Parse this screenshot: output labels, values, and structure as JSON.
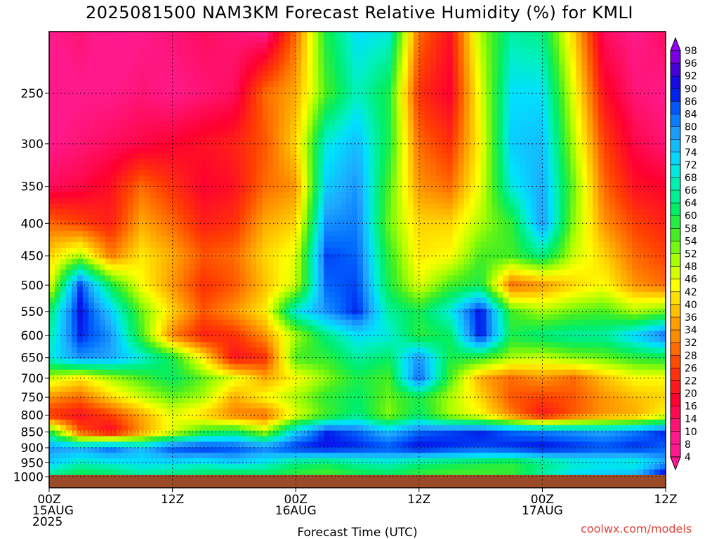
{
  "title": "2025081500 NAM3KM Forecast Relative Humidity (%) for KMLI",
  "credit": "coolwx.com/models",
  "chart_data": {
    "type": "heatmap",
    "title": "2025081500 NAM3KM Forecast Relative Humidity (%) for KMLI",
    "xlabel": "Forecast Time (UTC)",
    "ylabel": "",
    "x_range_hours": [
      0,
      60
    ],
    "y_range_hPa": [
      200,
      1040
    ],
    "y_scale": "log",
    "x_ticks": [
      {
        "hour": 0,
        "lines": [
          "00Z",
          "15AUG",
          "2025"
        ]
      },
      {
        "hour": 12,
        "lines": [
          "12Z"
        ]
      },
      {
        "hour": 24,
        "lines": [
          "00Z",
          "16AUG"
        ]
      },
      {
        "hour": 36,
        "lines": [
          "12Z"
        ]
      },
      {
        "hour": 48,
        "lines": [
          "00Z",
          "17AUG"
        ]
      },
      {
        "hour": 60,
        "lines": [
          "12Z"
        ]
      }
    ],
    "y_ticks": [
      250,
      300,
      350,
      400,
      450,
      500,
      550,
      600,
      650,
      700,
      750,
      800,
      850,
      900,
      950,
      1000
    ],
    "colorbar_labels": [
      "98",
      "96",
      "92",
      "90",
      "86",
      "84",
      "80",
      "78",
      "74",
      "72",
      "68",
      "66",
      "64",
      "60",
      "58",
      "54",
      "52",
      "48",
      "46",
      "42",
      "40",
      "36",
      "34",
      "32",
      "28",
      "26",
      "22",
      "20",
      "16",
      "14",
      "10",
      "8",
      "4"
    ],
    "surface_pressure_hPa": 993,
    "levels_hPa": [
      200,
      250,
      300,
      350,
      400,
      450,
      500,
      550,
      600,
      650,
      700,
      750,
      800,
      850,
      900,
      950,
      990
    ],
    "times_h": [
      0,
      3,
      6,
      9,
      12,
      15,
      18,
      21,
      24,
      27,
      30,
      33,
      36,
      39,
      42,
      45,
      48,
      51,
      54,
      57,
      60
    ],
    "rh": [
      [
        10,
        12,
        8,
        10,
        12,
        14,
        12,
        10,
        30,
        60,
        72,
        70,
        30,
        20,
        50,
        66,
        64,
        40,
        14,
        10,
        14
      ],
      [
        8,
        10,
        10,
        12,
        10,
        12,
        14,
        30,
        36,
        56,
        68,
        60,
        24,
        18,
        46,
        72,
        72,
        46,
        20,
        12,
        10
      ],
      [
        10,
        12,
        14,
        16,
        18,
        20,
        22,
        28,
        40,
        70,
        76,
        60,
        30,
        24,
        44,
        74,
        76,
        50,
        26,
        16,
        12
      ],
      [
        14,
        16,
        20,
        30,
        24,
        18,
        20,
        30,
        34,
        74,
        80,
        56,
        34,
        30,
        46,
        70,
        78,
        54,
        30,
        20,
        18
      ],
      [
        30,
        26,
        22,
        36,
        30,
        22,
        24,
        36,
        40,
        80,
        82,
        54,
        40,
        40,
        50,
        58,
        80,
        52,
        34,
        26,
        22
      ],
      [
        40,
        50,
        32,
        42,
        36,
        28,
        30,
        40,
        46,
        86,
        84,
        58,
        42,
        44,
        56,
        56,
        64,
        48,
        40,
        30,
        26
      ],
      [
        44,
        86,
        60,
        44,
        34,
        24,
        28,
        38,
        48,
        84,
        86,
        60,
        46,
        56,
        60,
        30,
        34,
        40,
        44,
        34,
        30
      ],
      [
        62,
        90,
        74,
        54,
        40,
        28,
        34,
        42,
        70,
        80,
        88,
        66,
        60,
        70,
        90,
        56,
        50,
        54,
        56,
        50,
        54
      ],
      [
        66,
        88,
        80,
        56,
        32,
        22,
        24,
        34,
        50,
        64,
        72,
        70,
        58,
        62,
        90,
        60,
        64,
        66,
        66,
        74,
        84
      ],
      [
        70,
        80,
        78,
        70,
        60,
        42,
        20,
        24,
        56,
        58,
        66,
        62,
        80,
        60,
        58,
        50,
        48,
        52,
        54,
        58,
        60
      ],
      [
        48,
        42,
        50,
        56,
        62,
        54,
        46,
        36,
        44,
        52,
        60,
        56,
        84,
        56,
        36,
        30,
        34,
        30,
        38,
        44,
        44
      ],
      [
        34,
        30,
        40,
        48,
        54,
        50,
        36,
        44,
        50,
        58,
        62,
        54,
        60,
        50,
        40,
        28,
        26,
        28,
        34,
        38,
        40
      ],
      [
        24,
        20,
        26,
        36,
        46,
        40,
        32,
        30,
        46,
        56,
        64,
        52,
        62,
        50,
        44,
        32,
        20,
        28,
        34,
        36,
        44
      ],
      [
        60,
        28,
        18,
        34,
        46,
        58,
        62,
        50,
        74,
        88,
        84,
        76,
        84,
        86,
        88,
        84,
        82,
        80,
        78,
        82,
        88
      ],
      [
        80,
        78,
        84,
        76,
        86,
        88,
        86,
        82,
        88,
        90,
        88,
        86,
        90,
        88,
        86,
        88,
        90,
        88,
        86,
        88,
        84
      ],
      [
        74,
        68,
        70,
        72,
        72,
        70,
        74,
        70,
        64,
        62,
        66,
        68,
        64,
        62,
        60,
        58,
        64,
        68,
        70,
        68,
        78
      ],
      [
        66,
        60,
        62,
        66,
        64,
        62,
        60,
        62,
        58,
        56,
        60,
        62,
        58,
        56,
        56,
        58,
        66,
        72,
        74,
        76,
        92
      ]
    ]
  }
}
